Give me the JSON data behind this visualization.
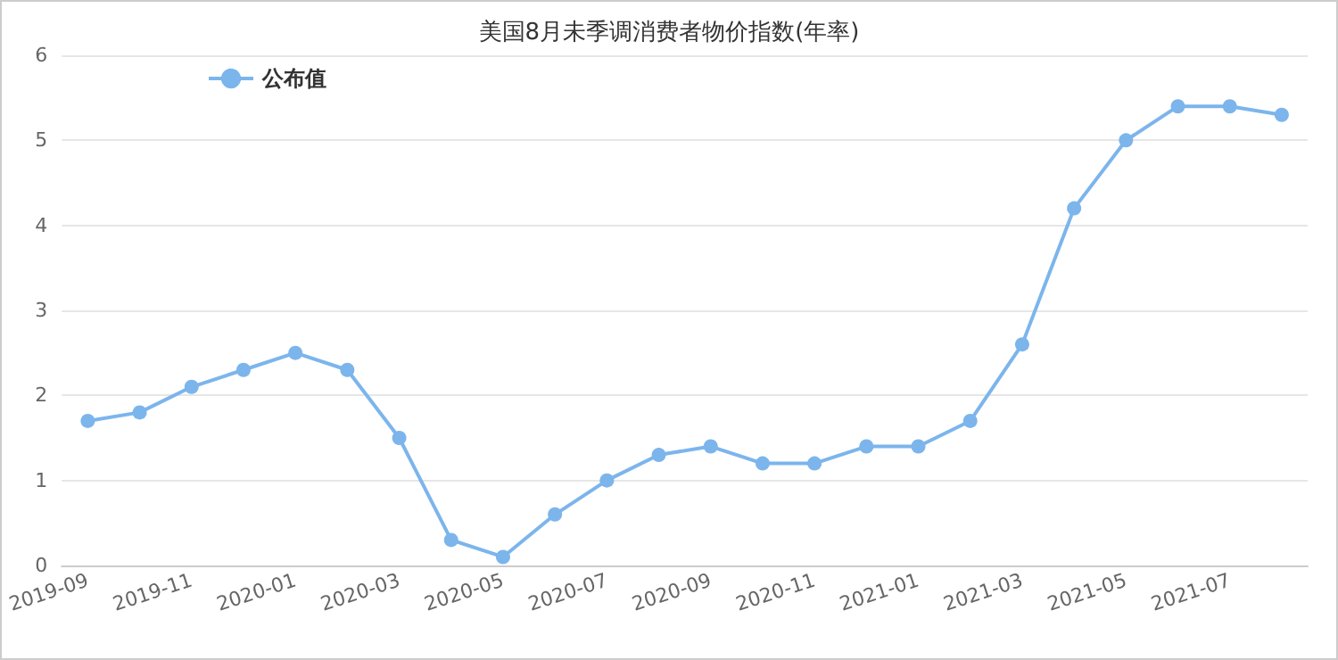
{
  "chart_data": {
    "type": "line",
    "title": "美国8月未季调消费者物价指数(年率)",
    "categories": [
      "2019-09",
      null,
      "2019-11",
      null,
      "2020-01",
      null,
      "2020-03",
      null,
      "2020-05",
      null,
      "2020-07",
      null,
      "2020-09",
      null,
      "2020-11",
      null,
      "2021-01",
      null,
      "2021-03",
      null,
      "2021-05",
      null,
      "2021-07",
      null
    ],
    "series": [
      {
        "name": "公布值",
        "color": "#7cb5ec",
        "values": [
          1.7,
          1.8,
          2.1,
          2.3,
          2.5,
          2.3,
          1.5,
          0.3,
          0.1,
          0.6,
          1.0,
          1.3,
          1.4,
          1.2,
          1.2,
          1.4,
          1.4,
          1.7,
          2.6,
          4.2,
          5.0,
          5.4,
          5.4,
          5.3
        ]
      }
    ],
    "ylim": [
      0,
      6
    ],
    "yticks": [
      0,
      1,
      2,
      3,
      4,
      5,
      6
    ],
    "grid": "y",
    "legend": "top left",
    "marker": "circle",
    "line_style": "solid"
  }
}
